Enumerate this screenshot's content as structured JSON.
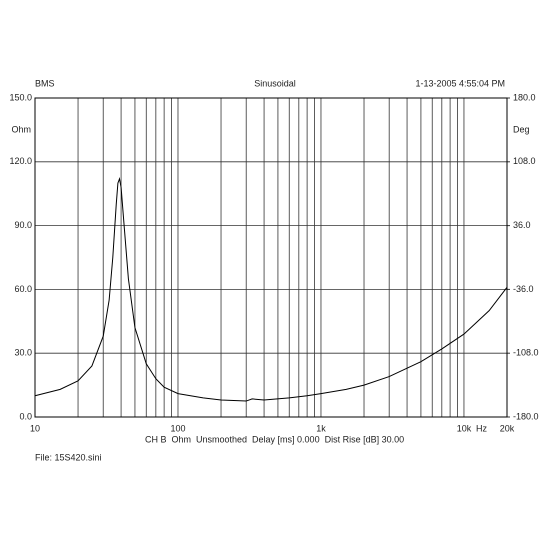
{
  "chart_data": {
    "type": "line",
    "header_left": "BMS",
    "title": "Sinusoidal",
    "header_right": "1-13-2005 4:55:04 PM",
    "y_unit": "Ohm",
    "y2_unit": "Deg",
    "x_unit": "Hz",
    "footer": "CH B  Ohm  Unsmoothed  Delay [ms] 0.000  Dist Rise [dB] 30.00",
    "file": "File: 15S420.sini",
    "x_scale": "log",
    "xlim": [
      10,
      20000
    ],
    "xticks": [
      10,
      100,
      {
        "value": 1000,
        "label": "1k"
      },
      {
        "value": 10000,
        "label": "10k"
      },
      {
        "value": 20000,
        "label": "20k"
      }
    ],
    "x_minor_ticks": [
      20,
      30,
      40,
      50,
      60,
      70,
      80,
      90,
      200,
      300,
      400,
      500,
      600,
      700,
      800,
      900,
      2000,
      3000,
      4000,
      5000,
      6000,
      7000,
      8000,
      9000
    ],
    "ylim": [
      0,
      150
    ],
    "yticks": [
      {
        "value": 0,
        "label": "0.0"
      },
      {
        "value": 30,
        "label": "30.0"
      },
      {
        "value": 60,
        "label": "60.0"
      },
      {
        "value": 90,
        "label": "90.0"
      },
      {
        "value": 120,
        "label": "120.0"
      },
      {
        "value": 150,
        "label": "150.0"
      }
    ],
    "y2lim": [
      -180,
      180
    ],
    "y2ticks": [
      {
        "value": -180,
        "label": "-180.0"
      },
      {
        "value": -108,
        "label": "-108.0"
      },
      {
        "value": -36,
        "label": "-36.0"
      },
      {
        "value": 36,
        "label": "36.0"
      },
      {
        "value": 108,
        "label": "108.0"
      },
      {
        "value": 180,
        "label": "180.0"
      }
    ],
    "grid": true,
    "color": "#000000",
    "x": [
      10,
      15,
      20,
      25,
      30,
      33,
      35,
      37,
      38,
      39,
      40,
      42,
      45,
      50,
      60,
      70,
      80,
      100,
      150,
      200,
      300,
      330,
      400,
      600,
      800,
      1000,
      1500,
      2000,
      3000,
      5000,
      7000,
      10000,
      15000,
      20000
    ],
    "values": [
      10,
      13,
      17,
      24,
      38,
      55,
      75,
      100,
      110,
      112,
      108,
      90,
      65,
      42,
      25,
      18,
      14,
      11,
      9,
      8,
      7.5,
      8.5,
      8,
      9,
      10,
      11,
      13,
      15,
      19,
      26,
      32,
      39,
      50,
      61
    ]
  }
}
